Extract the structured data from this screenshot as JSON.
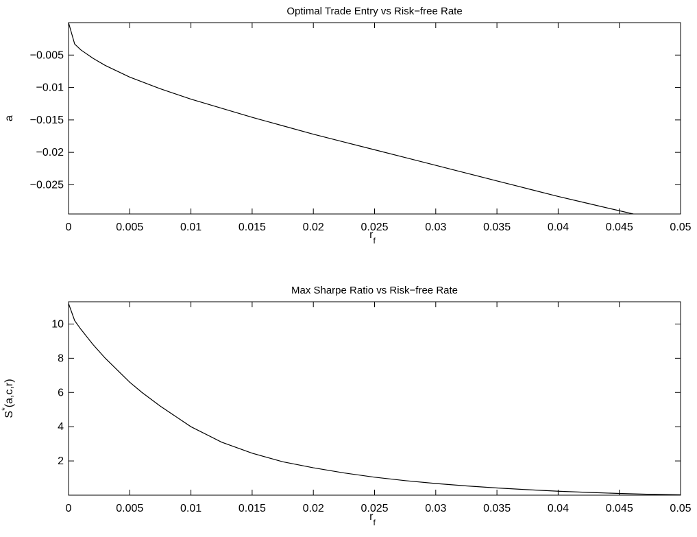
{
  "chart_data": [
    {
      "type": "line",
      "title": "Optimal Trade Entry vs Risk−free Rate",
      "xlabel": "r",
      "xlabel_sub": "f",
      "ylabel": "a",
      "xlim": [
        0,
        0.05
      ],
      "ylim": [
        -0.0295,
        0.0
      ],
      "grid": false,
      "xticks": [
        0,
        0.005,
        0.01,
        0.015,
        0.02,
        0.025,
        0.03,
        0.035,
        0.04,
        0.045,
        0.05
      ],
      "xtick_labels": [
        "0",
        "0.005",
        "0.01",
        "0.015",
        "0.02",
        "0.025",
        "0.03",
        "0.035",
        "0.04",
        "0.045",
        "0.05"
      ],
      "yticks": [
        -0.005,
        -0.01,
        -0.015,
        -0.02,
        -0.025
      ],
      "ytick_labels": [
        "−0.005",
        "−0.01",
        "−0.015",
        "−0.02",
        "−0.025"
      ],
      "series": [
        {
          "x": [
            0,
            0.0005,
            0.001,
            0.002,
            0.003,
            0.004,
            0.005,
            0.0075,
            0.01,
            0.0125,
            0.015,
            0.0175,
            0.02,
            0.0225,
            0.025,
            0.0275,
            0.03,
            0.0325,
            0.035,
            0.0375,
            0.04,
            0.0425,
            0.045,
            0.0475,
            0.05
          ],
          "y": [
            0.0,
            -0.0033,
            -0.0042,
            -0.0055,
            -0.0066,
            -0.0075,
            -0.0084,
            -0.0102,
            -0.0118,
            -0.0132,
            -0.0146,
            -0.0159,
            -0.0172,
            -0.0184,
            -0.0196,
            -0.0208,
            -0.022,
            -0.0232,
            -0.0244,
            -0.0256,
            -0.0268,
            -0.0279,
            -0.029,
            -0.0301,
            -0.0313
          ]
        }
      ]
    },
    {
      "type": "line",
      "title": "Max Sharpe Ratio vs Risk−free Rate",
      "xlabel": "r",
      "xlabel_sub": "f",
      "ylabel": "S",
      "ylabel_sup": "*",
      "ylabel_rest": "(a,c,r)",
      "xlim": [
        0,
        0.05
      ],
      "ylim": [
        0,
        11.3
      ],
      "grid": false,
      "xticks": [
        0,
        0.005,
        0.01,
        0.015,
        0.02,
        0.025,
        0.03,
        0.035,
        0.04,
        0.045,
        0.05
      ],
      "xtick_labels": [
        "0",
        "0.005",
        "0.01",
        "0.015",
        "0.02",
        "0.025",
        "0.03",
        "0.035",
        "0.04",
        "0.045",
        "0.05"
      ],
      "yticks": [
        2,
        4,
        6,
        8,
        10
      ],
      "ytick_labels": [
        "2",
        "4",
        "6",
        "8",
        "10"
      ],
      "series": [
        {
          "x": [
            0,
            0.0005,
            0.001,
            0.002,
            0.003,
            0.004,
            0.005,
            0.006,
            0.0075,
            0.01,
            0.0125,
            0.015,
            0.0175,
            0.02,
            0.0225,
            0.025,
            0.0275,
            0.03,
            0.0325,
            0.035,
            0.0375,
            0.04,
            0.0425,
            0.045,
            0.0475,
            0.05
          ],
          "y": [
            11.2,
            10.2,
            9.7,
            8.8,
            8.0,
            7.3,
            6.6,
            6.0,
            5.2,
            4.0,
            3.1,
            2.45,
            1.95,
            1.6,
            1.3,
            1.05,
            0.85,
            0.68,
            0.54,
            0.42,
            0.32,
            0.23,
            0.16,
            0.1,
            0.05,
            0.02
          ]
        }
      ]
    }
  ]
}
